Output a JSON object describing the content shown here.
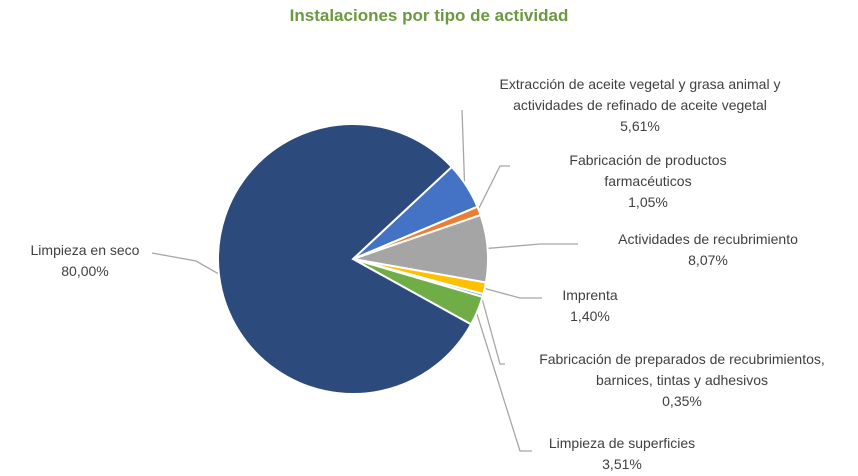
{
  "chart_data": {
    "type": "pie",
    "title": "Instalaciones por tipo de actividad",
    "start_angle_deg": 47,
    "direction": "clockwise",
    "slices": [
      {
        "key": "aceite",
        "label": "Extracción de aceite vegetal y grasa animal y\nactividades de refinado de aceite vegetal",
        "value": 5.61,
        "value_label": "5,61%",
        "color": "#4472c4"
      },
      {
        "key": "farma",
        "label": "Fabricación de productos\nfarmacéuticos",
        "value": 1.05,
        "value_label": "1,05%",
        "color": "#ed7d31"
      },
      {
        "key": "recubrimiento",
        "label": "Actividades de recubrimiento",
        "value": 8.07,
        "value_label": "8,07%",
        "color": "#a5a5a5"
      },
      {
        "key": "imprenta",
        "label": "Imprenta",
        "value": 1.4,
        "value_label": "1,40%",
        "color": "#ffc000"
      },
      {
        "key": "preparados",
        "label": "Fabricación de preparados de recubrimientos,\nbarnices, tintas y adhesivos",
        "value": 0.35,
        "value_label": "0,35%",
        "color": "#5b9bd5"
      },
      {
        "key": "superficies",
        "label": "Limpieza de superficies",
        "value": 3.51,
        "value_label": "3,51%",
        "color": "#70ad47"
      },
      {
        "key": "seco",
        "label": "Limpieza en seco",
        "value": 80.0,
        "value_label": "80,00%",
        "color": "#2c4a7c"
      }
    ],
    "leader_line_color": "#a6a6a6"
  }
}
